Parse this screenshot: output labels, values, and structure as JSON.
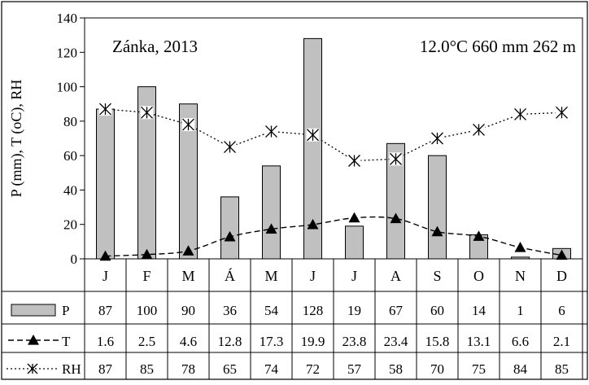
{
  "chart_data": {
    "type": "bar",
    "title": "Zánka, 2013",
    "annotation": "12.0°C  660 mm  262 m",
    "ylabel": "P (mm), T (oC), RH",
    "ylim": [
      0,
      140
    ],
    "yticks": [
      "0",
      "20",
      "40",
      "60",
      "80",
      "100",
      "120",
      "140"
    ],
    "categories": [
      "J",
      "F",
      "M",
      "Á",
      "M",
      "J",
      "J",
      "A",
      "S",
      "O",
      "N",
      "D"
    ],
    "series": [
      {
        "name": "P",
        "kind": "bar",
        "color": "#c0c0c0",
        "values": [
          87,
          100,
          90,
          36,
          54,
          128,
          19,
          67,
          60,
          14,
          1,
          6
        ],
        "labels": [
          "87",
          "100",
          "90",
          "36",
          "54",
          "128",
          "19",
          "67",
          "60",
          "14",
          "1",
          "6"
        ]
      },
      {
        "name": "T",
        "kind": "line-dashed",
        "marker": "triangle",
        "values": [
          1.6,
          2.5,
          4.6,
          12.8,
          17.3,
          19.9,
          23.8,
          23.4,
          15.8,
          13.1,
          6.6,
          2.1
        ],
        "labels": [
          "1.6",
          "2.5",
          "4.6",
          "12.8",
          "17.3",
          "19.9",
          "23.8",
          "23.4",
          "15.8",
          "13.1",
          "6.6",
          "2.1"
        ]
      },
      {
        "name": "RH",
        "kind": "line-dotted",
        "marker": "asterisk",
        "values": [
          87,
          85,
          78,
          65,
          74,
          72,
          57,
          58,
          70,
          75,
          84,
          85
        ],
        "labels": [
          "87",
          "85",
          "78",
          "65",
          "74",
          "72",
          "57",
          "58",
          "70",
          "75",
          "84",
          "85"
        ]
      }
    ],
    "grid": false,
    "legend": "table-below"
  }
}
